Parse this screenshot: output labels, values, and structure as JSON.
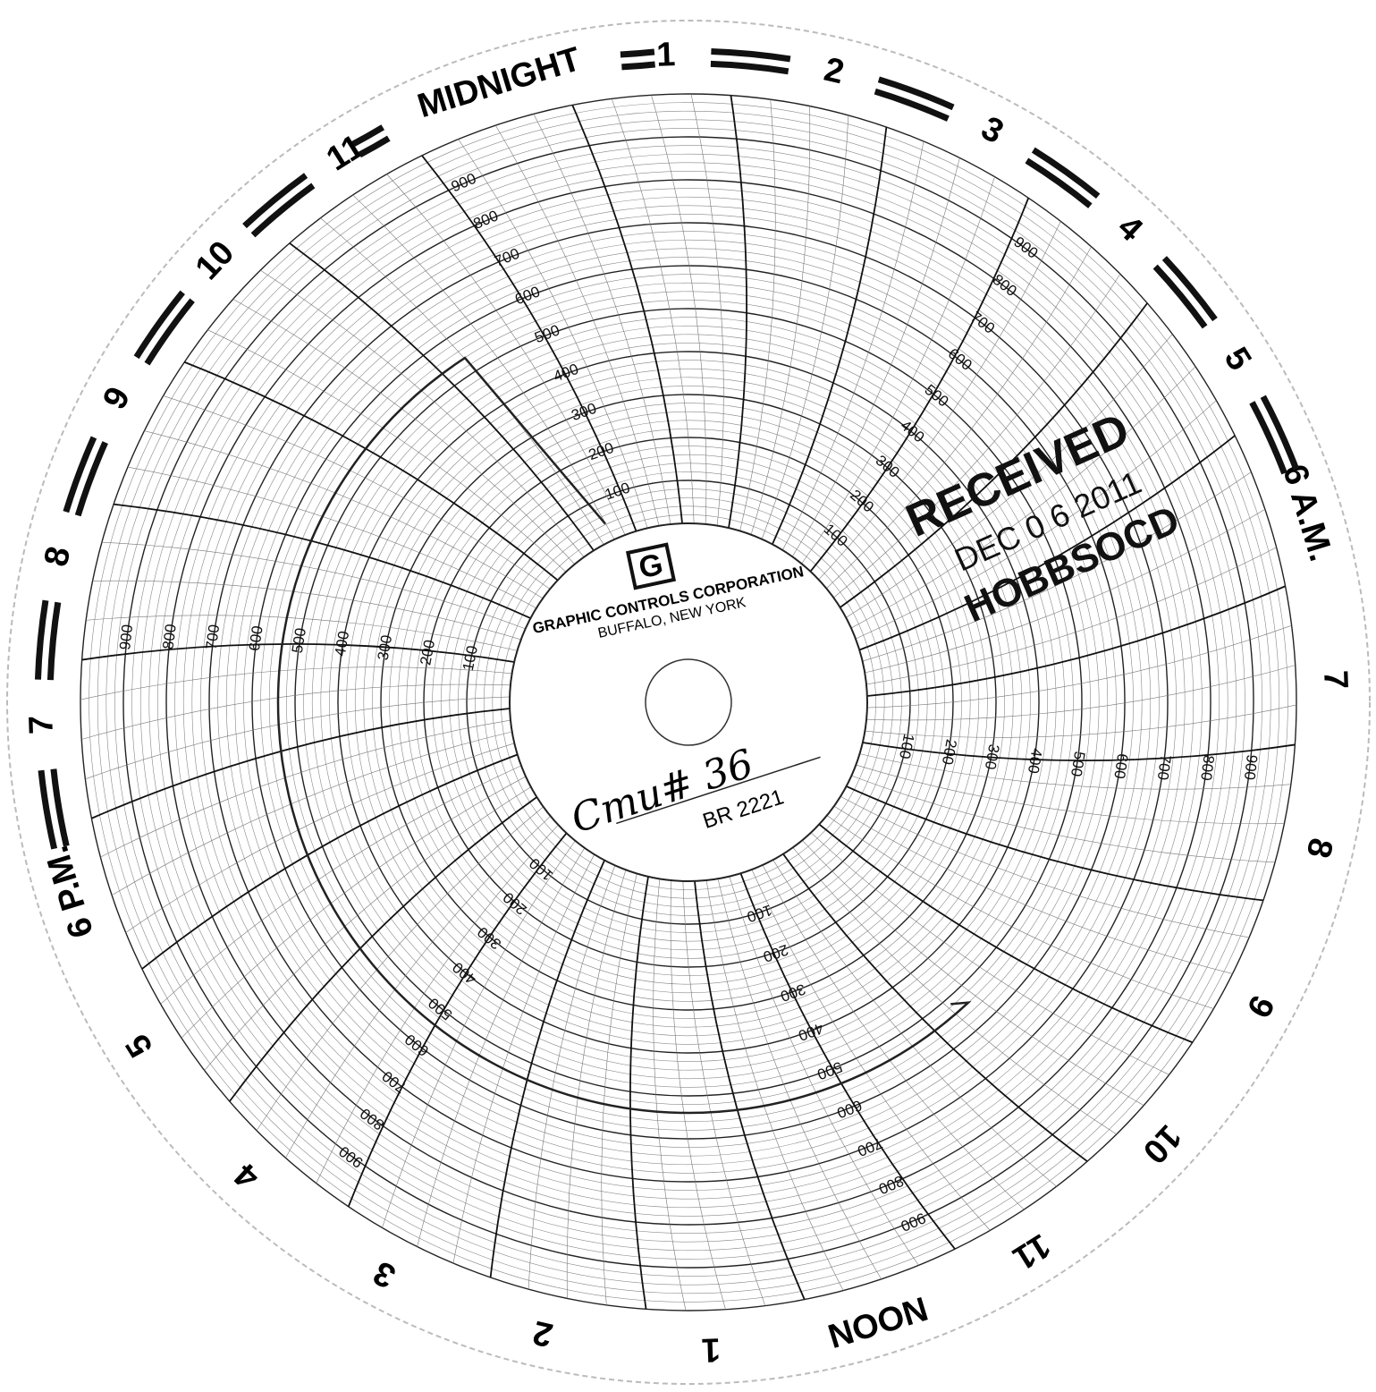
{
  "hour_labels": [
    "MIDNIGHT",
    "1",
    "2",
    "3",
    "4",
    "5",
    "6 A.M.",
    "7",
    "8",
    "9",
    "10",
    "11",
    "NOON",
    "1",
    "2",
    "3",
    "4",
    "5",
    "6 P.M.",
    "7",
    "8",
    "9",
    "10",
    "11"
  ],
  "scale_labels": [
    100,
    200,
    300,
    400,
    500,
    600,
    700,
    800,
    900
  ],
  "logo": {
    "mark": "G",
    "company": "GRAPHIC CONTROLS CORPORATION",
    "city": "BUFFALO, NEW YORK"
  },
  "handwriting": {
    "line1": "Cmu# 36",
    "line2": "BR 2221"
  },
  "stamp": {
    "title": "RECEIVED",
    "date": "DEC 0 6 2011",
    "office": "HOBBSOCD"
  }
}
